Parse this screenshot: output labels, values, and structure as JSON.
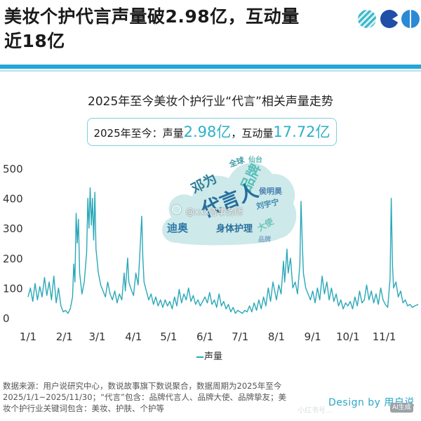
{
  "header": {
    "headline": "美妆个护代言声量破2.98亿，互动量近18亿"
  },
  "summary": {
    "prefix": "2025年至今：声量",
    "volume": "2.98亿",
    "mid": "，互动量",
    "engagement": "17.72亿"
  },
  "word_cloud": {
    "words": [
      "全球",
      "仙台",
      "邓为",
      "品牌",
      "代言人",
      "侯明昊",
      "刘宇宁",
      "迪奥",
      "身体护理",
      "大使",
      "品牌"
    ]
  },
  "watermark": "@xxx咨事务所",
  "footer": {
    "source": "数据来源：用户说研究中心，数说故事旗下数说聚合，数据周期为2025年至今2025/1/1~2025/11/30；“代言”包含：品牌代言人、品牌大使、品牌挚友；美妆个护行业关键词包含：美妆、护肤、个护等",
    "design": "Design by 用户说",
    "faint": "小红书号…",
    "ai_badge": "AI生成"
  },
  "colors": {
    "line": "#2aa8b8",
    "accent_rule": "#23a6d8",
    "highlight_text": "#2cb0c7",
    "cloud_fill": "#cde9ea"
  },
  "chart_data": {
    "type": "line",
    "title": "2025年至今美妆个护行业“代言”相关声量走势",
    "xlabel": "",
    "ylabel": "",
    "ylim": [
      0,
      500
    ],
    "yticks": [
      0,
      100,
      200,
      300,
      400,
      500
    ],
    "x_range": [
      "2025-01-01",
      "2025-11-30"
    ],
    "xticks": [
      {
        "date": "2025-01-01",
        "label": "1/1"
      },
      {
        "date": "2025-02-01",
        "label": "2/1"
      },
      {
        "date": "2025-03-01",
        "label": "3/1"
      },
      {
        "date": "2025-04-01",
        "label": "4/1"
      },
      {
        "date": "2025-05-01",
        "label": "5/1"
      },
      {
        "date": "2025-06-01",
        "label": "6/1"
      },
      {
        "date": "2025-07-01",
        "label": "7/1"
      },
      {
        "date": "2025-08-01",
        "label": "8/1"
      },
      {
        "date": "2025-09-01",
        "label": "9/1"
      },
      {
        "date": "2025-10-01",
        "label": "10/1"
      },
      {
        "date": "2025-11-01",
        "label": "11/1"
      }
    ],
    "legend": "bottom-center",
    "grid": false,
    "series": [
      {
        "name": "声量",
        "points": [
          {
            "x": "2025-01-01",
            "y": 70
          },
          {
            "x": "2025-01-03",
            "y": 100
          },
          {
            "x": "2025-01-05",
            "y": 55
          },
          {
            "x": "2025-01-07",
            "y": 115
          },
          {
            "x": "2025-01-09",
            "y": 60
          },
          {
            "x": "2025-01-11",
            "y": 105
          },
          {
            "x": "2025-01-13",
            "y": 70
          },
          {
            "x": "2025-01-15",
            "y": 135
          },
          {
            "x": "2025-01-17",
            "y": 75
          },
          {
            "x": "2025-01-19",
            "y": 120
          },
          {
            "x": "2025-01-21",
            "y": 60
          },
          {
            "x": "2025-01-23",
            "y": 140
          },
          {
            "x": "2025-01-25",
            "y": 50
          },
          {
            "x": "2025-01-27",
            "y": 100
          },
          {
            "x": "2025-01-29",
            "y": 40
          },
          {
            "x": "2025-01-31",
            "y": 20
          },
          {
            "x": "2025-02-02",
            "y": 25
          },
          {
            "x": "2025-02-04",
            "y": 15
          },
          {
            "x": "2025-02-06",
            "y": 30
          },
          {
            "x": "2025-02-08",
            "y": 70
          },
          {
            "x": "2025-02-09",
            "y": 180
          },
          {
            "x": "2025-02-10",
            "y": 120
          },
          {
            "x": "2025-02-11",
            "y": 350
          },
          {
            "x": "2025-02-12",
            "y": 250
          },
          {
            "x": "2025-02-13",
            "y": 330
          },
          {
            "x": "2025-02-14",
            "y": 150
          },
          {
            "x": "2025-02-16",
            "y": 80
          },
          {
            "x": "2025-02-18",
            "y": 120
          },
          {
            "x": "2025-02-20",
            "y": 220
          },
          {
            "x": "2025-02-21",
            "y": 400
          },
          {
            "x": "2025-02-22",
            "y": 300
          },
          {
            "x": "2025-02-23",
            "y": 435
          },
          {
            "x": "2025-02-24",
            "y": 310
          },
          {
            "x": "2025-02-25",
            "y": 400
          },
          {
            "x": "2025-02-26",
            "y": 260
          },
          {
            "x": "2025-02-27",
            "y": 420
          },
          {
            "x": "2025-02-28",
            "y": 230
          },
          {
            "x": "2025-03-02",
            "y": 150
          },
          {
            "x": "2025-03-04",
            "y": 110
          },
          {
            "x": "2025-03-06",
            "y": 90
          },
          {
            "x": "2025-03-08",
            "y": 70
          },
          {
            "x": "2025-03-10",
            "y": 120
          },
          {
            "x": "2025-03-12",
            "y": 80
          },
          {
            "x": "2025-03-14",
            "y": 60
          },
          {
            "x": "2025-03-16",
            "y": 90
          },
          {
            "x": "2025-03-18",
            "y": 50
          },
          {
            "x": "2025-03-20",
            "y": 80
          },
          {
            "x": "2025-03-22",
            "y": 60
          },
          {
            "x": "2025-03-24",
            "y": 150
          },
          {
            "x": "2025-03-25",
            "y": 90
          },
          {
            "x": "2025-03-27",
            "y": 200
          },
          {
            "x": "2025-03-28",
            "y": 120
          },
          {
            "x": "2025-03-30",
            "y": 95
          },
          {
            "x": "2025-04-01",
            "y": 75
          },
          {
            "x": "2025-04-03",
            "y": 150
          },
          {
            "x": "2025-04-05",
            "y": 110
          },
          {
            "x": "2025-04-07",
            "y": 260
          },
          {
            "x": "2025-04-08",
            "y": 340
          },
          {
            "x": "2025-04-09",
            "y": 200
          },
          {
            "x": "2025-04-10",
            "y": 120
          },
          {
            "x": "2025-04-12",
            "y": 90
          },
          {
            "x": "2025-04-14",
            "y": 60
          },
          {
            "x": "2025-04-16",
            "y": 80
          },
          {
            "x": "2025-04-18",
            "y": 45
          },
          {
            "x": "2025-04-20",
            "y": 70
          },
          {
            "x": "2025-04-22",
            "y": 40
          },
          {
            "x": "2025-04-24",
            "y": 60
          },
          {
            "x": "2025-04-26",
            "y": 35
          },
          {
            "x": "2025-04-28",
            "y": 60
          },
          {
            "x": "2025-04-30",
            "y": 40
          },
          {
            "x": "2025-05-02",
            "y": 55
          },
          {
            "x": "2025-05-04",
            "y": 30
          },
          {
            "x": "2025-05-06",
            "y": 70
          },
          {
            "x": "2025-05-08",
            "y": 40
          },
          {
            "x": "2025-05-10",
            "y": 95
          },
          {
            "x": "2025-05-12",
            "y": 50
          },
          {
            "x": "2025-05-14",
            "y": 80
          },
          {
            "x": "2025-05-16",
            "y": 60
          },
          {
            "x": "2025-05-18",
            "y": 100
          },
          {
            "x": "2025-05-20",
            "y": 55
          },
          {
            "x": "2025-05-22",
            "y": 75
          },
          {
            "x": "2025-05-24",
            "y": 45
          },
          {
            "x": "2025-05-26",
            "y": 60
          },
          {
            "x": "2025-05-28",
            "y": 40
          },
          {
            "x": "2025-05-30",
            "y": 55
          },
          {
            "x": "2025-06-01",
            "y": 70
          },
          {
            "x": "2025-06-03",
            "y": 50
          },
          {
            "x": "2025-06-05",
            "y": 85
          },
          {
            "x": "2025-06-07",
            "y": 45
          },
          {
            "x": "2025-06-09",
            "y": 60
          },
          {
            "x": "2025-06-11",
            "y": 35
          },
          {
            "x": "2025-06-13",
            "y": 80
          },
          {
            "x": "2025-06-15",
            "y": 40
          },
          {
            "x": "2025-06-17",
            "y": 55
          },
          {
            "x": "2025-06-19",
            "y": 30
          },
          {
            "x": "2025-06-21",
            "y": 45
          },
          {
            "x": "2025-06-23",
            "y": 20
          },
          {
            "x": "2025-06-25",
            "y": 35
          },
          {
            "x": "2025-06-27",
            "y": 15
          },
          {
            "x": "2025-06-29",
            "y": 25
          },
          {
            "x": "2025-07-01",
            "y": 20
          },
          {
            "x": "2025-07-03",
            "y": 15
          },
          {
            "x": "2025-07-05",
            "y": 25
          },
          {
            "x": "2025-07-07",
            "y": 20
          },
          {
            "x": "2025-07-09",
            "y": 40
          },
          {
            "x": "2025-07-11",
            "y": 20
          },
          {
            "x": "2025-07-13",
            "y": 50
          },
          {
            "x": "2025-07-15",
            "y": 25
          },
          {
            "x": "2025-07-17",
            "y": 60
          },
          {
            "x": "2025-07-19",
            "y": 30
          },
          {
            "x": "2025-07-21",
            "y": 70
          },
          {
            "x": "2025-07-23",
            "y": 40
          },
          {
            "x": "2025-07-25",
            "y": 100
          },
          {
            "x": "2025-07-27",
            "y": 55
          },
          {
            "x": "2025-07-29",
            "y": 120
          },
          {
            "x": "2025-07-31",
            "y": 80
          },
          {
            "x": "2025-08-01",
            "y": 60
          },
          {
            "x": "2025-08-03",
            "y": 110
          },
          {
            "x": "2025-08-05",
            "y": 80
          },
          {
            "x": "2025-08-07",
            "y": 190
          },
          {
            "x": "2025-08-08",
            "y": 120
          },
          {
            "x": "2025-08-10",
            "y": 230
          },
          {
            "x": "2025-08-11",
            "y": 150
          },
          {
            "x": "2025-08-13",
            "y": 200
          },
          {
            "x": "2025-08-15",
            "y": 100
          },
          {
            "x": "2025-08-17",
            "y": 120
          },
          {
            "x": "2025-08-19",
            "y": 80
          },
          {
            "x": "2025-08-21",
            "y": 180
          },
          {
            "x": "2025-08-22",
            "y": 390
          },
          {
            "x": "2025-08-23",
            "y": 260
          },
          {
            "x": "2025-08-24",
            "y": 150
          },
          {
            "x": "2025-08-26",
            "y": 100
          },
          {
            "x": "2025-08-28",
            "y": 80
          },
          {
            "x": "2025-08-30",
            "y": 60
          },
          {
            "x": "2025-09-01",
            "y": 90
          },
          {
            "x": "2025-09-03",
            "y": 50
          },
          {
            "x": "2025-09-05",
            "y": 100
          },
          {
            "x": "2025-09-07",
            "y": 60
          },
          {
            "x": "2025-09-09",
            "y": 140
          },
          {
            "x": "2025-09-11",
            "y": 80
          },
          {
            "x": "2025-09-13",
            "y": 120
          },
          {
            "x": "2025-09-15",
            "y": 60
          },
          {
            "x": "2025-09-17",
            "y": 100
          },
          {
            "x": "2025-09-19",
            "y": 55
          },
          {
            "x": "2025-09-21",
            "y": 80
          },
          {
            "x": "2025-09-23",
            "y": 40
          },
          {
            "x": "2025-09-25",
            "y": 60
          },
          {
            "x": "2025-09-27",
            "y": 30
          },
          {
            "x": "2025-09-29",
            "y": 50
          },
          {
            "x": "2025-10-01",
            "y": 40
          },
          {
            "x": "2025-10-03",
            "y": 55
          },
          {
            "x": "2025-10-05",
            "y": 30
          },
          {
            "x": "2025-10-07",
            "y": 70
          },
          {
            "x": "2025-10-09",
            "y": 40
          },
          {
            "x": "2025-10-11",
            "y": 90
          },
          {
            "x": "2025-10-13",
            "y": 50
          },
          {
            "x": "2025-10-15",
            "y": 60
          },
          {
            "x": "2025-10-17",
            "y": 110
          },
          {
            "x": "2025-10-19",
            "y": 60
          },
          {
            "x": "2025-10-21",
            "y": 90
          },
          {
            "x": "2025-10-23",
            "y": 50
          },
          {
            "x": "2025-10-25",
            "y": 80
          },
          {
            "x": "2025-10-27",
            "y": 45
          },
          {
            "x": "2025-10-29",
            "y": 100
          },
          {
            "x": "2025-10-31",
            "y": 60
          },
          {
            "x": "2025-11-02",
            "y": 45
          },
          {
            "x": "2025-11-04",
            "y": 35
          },
          {
            "x": "2025-11-06",
            "y": 130
          },
          {
            "x": "2025-11-07",
            "y": 400
          },
          {
            "x": "2025-11-08",
            "y": 180
          },
          {
            "x": "2025-11-09",
            "y": 100
          },
          {
            "x": "2025-11-11",
            "y": 120
          },
          {
            "x": "2025-11-13",
            "y": 70
          },
          {
            "x": "2025-11-15",
            "y": 90
          },
          {
            "x": "2025-11-17",
            "y": 50
          },
          {
            "x": "2025-11-19",
            "y": 60
          },
          {
            "x": "2025-11-21",
            "y": 40
          },
          {
            "x": "2025-11-23",
            "y": 45
          },
          {
            "x": "2025-11-25",
            "y": 35
          },
          {
            "x": "2025-11-27",
            "y": 40
          },
          {
            "x": "2025-11-30",
            "y": 45
          }
        ]
      }
    ]
  }
}
